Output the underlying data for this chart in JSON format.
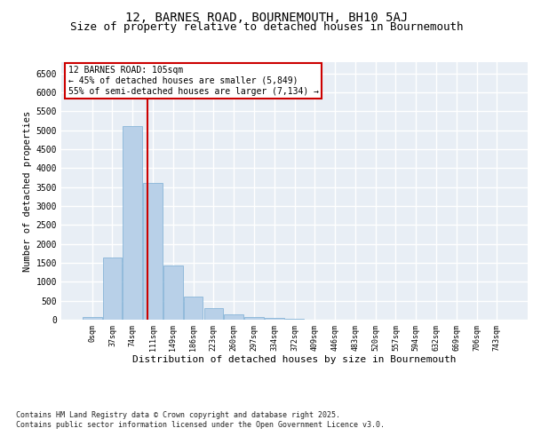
{
  "title": "12, BARNES ROAD, BOURNEMOUTH, BH10 5AJ",
  "subtitle": "Size of property relative to detached houses in Bournemouth",
  "xlabel": "Distribution of detached houses by size in Bournemouth",
  "ylabel": "Number of detached properties",
  "bar_color": "#b8d0e8",
  "bar_edge_color": "#7aadd4",
  "categories": [
    "0sqm",
    "37sqm",
    "74sqm",
    "111sqm",
    "149sqm",
    "186sqm",
    "223sqm",
    "260sqm",
    "297sqm",
    "334sqm",
    "372sqm",
    "409sqm",
    "446sqm",
    "483sqm",
    "520sqm",
    "557sqm",
    "594sqm",
    "632sqm",
    "669sqm",
    "706sqm",
    "743sqm"
  ],
  "values": [
    70,
    1650,
    5120,
    3620,
    1420,
    620,
    310,
    130,
    75,
    40,
    30,
    0,
    0,
    0,
    0,
    0,
    0,
    0,
    0,
    0,
    0
  ],
  "ylim": [
    0,
    6800
  ],
  "yticks": [
    0,
    500,
    1000,
    1500,
    2000,
    2500,
    3000,
    3500,
    4000,
    4500,
    5000,
    5500,
    6000,
    6500
  ],
  "vline_x": 2.72,
  "vline_color": "#cc0000",
  "annotation_title": "12 BARNES ROAD: 105sqm",
  "annotation_line1": "← 45% of detached houses are smaller (5,849)",
  "annotation_line2": "55% of semi-detached houses are larger (7,134) →",
  "annotation_box_color": "#cc0000",
  "annotation_bg": "#ffffff",
  "footer_line1": "Contains HM Land Registry data © Crown copyright and database right 2025.",
  "footer_line2": "Contains public sector information licensed under the Open Government Licence v3.0.",
  "background_color": "#e8eef5",
  "grid_color": "#ffffff",
  "fig_bg_color": "#ffffff",
  "title_fontsize": 10,
  "subtitle_fontsize": 9
}
